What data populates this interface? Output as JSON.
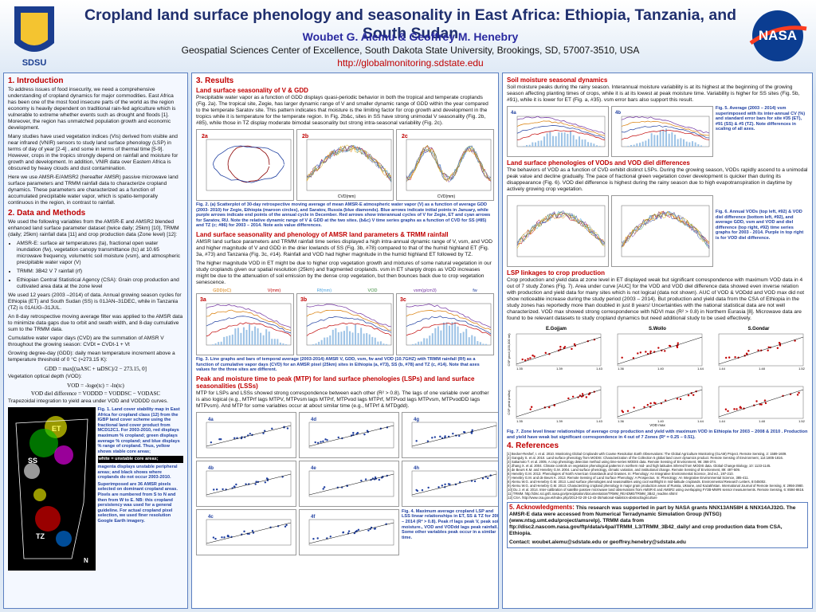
{
  "header": {
    "title": "Cropland land surface phenology and seasonality in East Africa: Ethiopia, Tanzania, and South Sudan",
    "authors": "Woubet G. Alemu & Geoffrey M. Henebry",
    "affiliation": "Geospatial Sciences Center of Excellence, South Dakota State University, Brookings, SD, 57007-3510, USA",
    "url": "http://globalmonitoring.sdstate.edu",
    "logo_left": "SDSU",
    "logo_right": "NASA"
  },
  "introduction": {
    "heading": "1. Introduction",
    "paragraphs": [
      "To address issues of food insecurity, we need a comprehensive understanding of cropland dynamics for major commodities. East Africa has been one of the most food insecure parts of the world as the region economy is heavily dependent on traditional rain-fed agriculture which is vulnerable to extreme whether events such as drought and floods [1]. Moreover, the region has unmatched population growth and economic development.",
      "Many studies have used vegetation indices (VIs) derived from visible and near infrared (VNIR) sensors to study land surface phenology (LSP) in terms of day of year [2-4] , and some in terms of thermal time [5-9]. However, crops in the tropics strongly depend on rainfall and moisture for growth and development. In addition, VNIR data over Eastern Africa is obscured by heavy clouds and dust contamination.",
      "Here we use AMSR-E/AMSR2 (hereafter AMSR) passive microwave land surface parameters and TRMM rainfall data to characterize cropland dynamics. These parameters are characterized as a function of accumulated precipitable water vapor, which is spatio-temporally continuous in the region, in contrast to rainfall."
    ]
  },
  "data_methods": {
    "heading": "2. Data and Methods",
    "intro": "We used the following variables from the AMSR-E and AMSR2 blended enhanced land surface parameter dataset (twice daily; 25km) [10], TRMM (daily; 25km) rainfall data [11] and crop production data (Zone level) [12]:",
    "bullets": [
      "AMSR-E: surface air temperatures (ta), fractional open water inundation (fw), vegetation canopy transmittance (tc) at 10.65 microwave frequency, volumetric soil moisture (vsm), and atmospheric precipitable water vapor (V)",
      "TRMM: 3B42 V 7 rainfall (rf)",
      "Ethiopian Central Statistical Agency (CSA): Grain crop production and cultivated area data at the zone level"
    ],
    "paragraphs": [
      "We used 12 years (2003 –2014) of data. Annual growing season cycles for Ethiopia (ET) and South Sudan (SS) is 01JAN–31DEC, while in Tanzania (TZ) is 01AUG–31JUL.",
      "An 8-day retrospective moving average filter was applied to the AMSR data to minimize data gaps due to orbit and swath width, and 8-day cumulative sum to the TRMM data.",
      "Cumulative water vapor days (CVD) are the summation of AMSR V throughout the growing season:  CVDt = CVDt-1 + Vt",
      "Growing degree-day (GDD): daily mean temperature increment above a temperature threshold of 0 °C (≈273.15 K):",
      "Vegetation optical depth (VOD):",
      "Trapezoidal integration to yield area under VOD and VODDD curves."
    ],
    "equations": [
      "GDD = max[(taASC + taDSC)/2 − 273.15, 0]",
      "VOD = -loge(tc) = -ln(tc)",
      "VOD diel difference = VODDD = VODDSC − VODASC"
    ]
  },
  "figure1": {
    "map_labels": [
      "ET",
      "SS",
      "TZ",
      "N"
    ],
    "caption": [
      "Fig. 1. Land cover stability map in East Africa for cropland class (12) from the IGBP land cover scheme using the fractional land cover product from MCD12C1. For 2003-2010, red displays maximum % cropland; green displays average % cropland; and blue displays % range of cropland. Thus, yellow shows stable core areas;",
      "white = unstable core areas;",
      "magenta displays unstable peripheral areas; and black shows where croplands do not occur 2003-2010.",
      "Superimposed are 36 AMSR pixels selected on dominant cropland areas. Pixels are numbered from S to N and then from W to E. NB: this cropland persistency was used for a general guideline. For actual cropland pixel selection, we used finer resolution Google Earth imagery."
    ]
  },
  "results": {
    "heading": "3. Results",
    "vgdd": {
      "heading": "Land surface seasonality of V & GDD",
      "paragraph": "Precipitable water vapor as a function of GDD displays quasi-periodic behavior in both the tropical and temperate croplands (Fig. 2a). The tropical site, Zegie, has larger dynamic range of V and smaller dynamic range of GDD within the year compared to the temperate Saratov site. This pattern indicates that moisture is the limiting factor for crop growth and development in the tropics while it is temperature for the temperate region. In Fig. 2b&c, sites in SS have strong unimodal V seasonality (Fig. 2b, #85), while those in TZ display moderate bimodal seasonality but strong intra-seasonal variability (Fig. 2c).",
      "figure": {
        "panels": [
          "2a",
          "2b",
          "2c"
        ],
        "xlabel": "CVD(mm)",
        "caption": "Fig. 2. (a) Scatterplot of 30-day retrospective moving average of mean AMSR-E atmospheric water vapor (V) as a function of average GDD (2003- 2010) for Zegie, Ethiopia (maroon circles), and Saratov, Russia (blue diamonds). Blue arrows indicate initial points in January, while purple arrows indicate end points of the annual cycle in December. Red arrows show interannual cycles of V for Zegie, ET and cyan arrows for Saratov, RU. Note the relative dynamic range of V & GDD at the two sites. (b&c) V time series graphs as a function of CVD for SS (#85) and TZ (c; #86) for 2003 – 2014. Note axis value differences."
      }
    },
    "amsr": {
      "heading": "Land surface seasonality and phenology of AMSR land parameters & TRMM rainfall",
      "paragraphs": [
        "AMSR land surface parameters and TRMM rainfall time series displayed a high intra-annual dynamic range of V, vsm, and VOD and higher magnitude of V and GDD in the drier lowlands of SS (Fig. 3b, #78) compared to that of the humid highland ET (Fig. 3a, #73) and Tanzania (Fig. 3c, #14). Rainfall and VOD had higher magnitude in the humid highland ET followed by TZ.",
        "The higher magnitude VOD in ET might be due to higher crop vegetation growth and mixtures of some natural vegetation in our study croplands given our spatial resolution (25km) and fragmented croplands. vsm in ET sharply drops as VOD increases might be due to the attenuation of soil emission by the dense crop vegetation, but then bounces back due to crop vegetation senescence."
      ],
      "figure": {
        "legend": [
          "GDD(oC)",
          "V(mm)",
          "Rf(mm)",
          "VOD",
          "vsm(g/cm3)",
          "fw"
        ],
        "panels": [
          "3a",
          "3b",
          "3c"
        ],
        "caption": "Fig. 3. Line graphs and bars of temporal average (2003-2014) AMSR V, GDD, vsm, fw and VOD (10.7GHZ) with TRMM rainfall (Rf) as a function of cumulative vapor days (CVD) for an AMSR pixel (25km) sites in Ethiopia (a, #73), SS (b, #78) and TZ (c, #14). Note that axes values for the three sites are different."
      }
    },
    "mtp": {
      "heading": "Peak and moisture time to peak (MTP) for land surface phenologies (LSPs) and land surface seasonalities (LSSs)",
      "paragraph": "MTP for LSPs and LSSs showed strong correspondence between each other (R² > 0.8). The lags of one variable over another is also logical (e.g., MTPrf lags MTPV, MTPvsm lags MTPrf, MTPvod lags MTPrf, MTPvod lags MTPvsm, MTPvodDD lags MTPvsm). And MTP for some variables occur at about similar time (e.g., MTPrf & MTDgdd).",
      "figure": {
        "panels": [
          "4a",
          "4d",
          "4g",
          "4b",
          "4e",
          "4h",
          "4c",
          "4f"
        ],
        "caption": "Fig. 4. Maximum average cropland LSP and LSS linear relationships in ET, SS & TZ for 2003 – 2014 (R² > 0.8). Peak rf lags peak V, peak soil moisture., VOD and VODdd lags peak rainfall. Some other variables peak occur in a similar time."
      }
    }
  },
  "soil_moisture": {
    "heading": "Soil moisture seasonal dynamics",
    "paragraph": "Soil moisture peaks during the rainy season. Interannual moisture variability is at its highest at the beginning of the growing season affecting planting times of crops, while it is at its lowest at peak moisture time. Variability is higher for SS sites (Fig. 5b, #91), while it is lower for ET (Fig. a, #35). vsm error bars also support this result.",
    "figure": {
      "panels": [
        "4a",
        "4b"
      ],
      "caption": "Fig. 5. Average (2003 – 2014) vsm superimposed with its inter-annual CV (%) and standard error bars for site #35 (ET), #91 (SS) & #5 (TZ). Note differences in scaling of all axes."
    }
  },
  "vod": {
    "heading": "Land surface phenologies of VODs and VOD diel differences",
    "paragraph": "The behaviors of VOD as a function of CVD exhibit distinct LSPs. During the growing season, VODs rapidly ascend to a unimodal peak value and decline gradually. The pace of fractional green vegetation cover development is quicker than during its disappearance (Fig. 6). VOD diel difference is highest during the rainy season due to high evapotranspiration in daytime by actively growing crop vegetation.",
    "figure": {
      "caption": "Fig. 6. Annual VODs (top left, #92) & VOD diel difference (bottom left, #92), and average GDD, vsm and VOD and diel difference (top right, #92) time series graphs for 2003 - 2014. Purple in top right is for VOD diel difference."
    }
  },
  "lsp": {
    "heading": "LSP linkages to crop production",
    "paragraph": "Crop production and yield data at zone level in ET displayed weak but significant correspondence with maximum VOD data in 4 out of 7 study Zones (Fig. 7). Area under curve [AUC] for the VOD and VOD diel difference data showed even inverse relation with production and yield data for many sites which is not logical (data not shown). AUC of VOD & VODdd and VOD max did not show noticeable increase during the study period (2003 – 2014). But production and yield data from the CSA of Ethiopia in the study zones has reportedly more than doubled in just 8 years! Uncertainties with the national statistical data are not well characterized.  VOD max showed strong correspondence with NDVI max (R² > 0.8) in Northern Eurasia [8]. Microwave data are found to be relevant datasets to study cropland dynamics but need additional study to be used effectively.",
    "figure": {
      "titles": [
        "E.Gojjam",
        "S.Wollo",
        "S.Gondar"
      ],
      "ylabels": [
        "CSP prod (100,000 mt)",
        "CSP yield (mt/ha)"
      ],
      "xlabel": "VOD max",
      "xticks": [
        [
          "1.35",
          "1.39",
          "1.43"
        ],
        [
          "1.36",
          "1.40",
          "1.44"
        ],
        [
          "1.44",
          "1.48",
          "1.52"
        ]
      ],
      "caption": "Fig. 7. Zone level linear relationships of average crop production and yield with maximum VOD in Ethiopia for 2003 – 2008 & 2010 . Production and yield  have weak but significant correspondence in 4 out of 7 Zones (R² = 0.25 – 0.51)."
    }
  },
  "references": {
    "heading": "4. References",
    "items": [
      "[1]  Becker-Reshef, I. et al. 2010. Monitoring Global Croplands with Coarse Resolution Earth Observations: The Global Agriculture Monitoring (GLAM) Project. Remote Sensing, 2: 1589-1609.",
      "[2]  Ganguly S. et al. 2010. Land surface phenology from MODIS: Characterization of the Collection 5 global land cover dynamics product. Remote Sensing of Environment, 114:1805-1816.",
      "[3]  Sakamoto T. et al. 2005. A crop phenology detection method using time-series MODIS data. Remote Sensing of Environment, 96: 366-374.",
      "[4]  Zhang X. et al. 2004. Climate controls on vegetation phenological patterns in northern mid- and high latitudes inferred from MODIS data. Global Change Biology, 10: 1133-1145.",
      "[5]  de Beurs K.M. and Henebry G.M. 2004. Land surface phenology, climatic variation, and institutional change. Remote Sensing of Environment, 89: 497-509.",
      "[6]  Henebry G.M. 2013. Phenologies of North American Grasslands and Grasses. In: Phenology: An Integrative Environmental Science, 2nd ed., 197-210.",
      "[7]  Henebry G.M. and de Beurs K. 2013. Remote Sensing of Land Surface Phenology: A Prospectus. In: Phenology: An Integrative Environmental Science, 385-411.",
      "[8]  Alemu W.G. and Henebry G.M. 2013. Land surface phenologies and seasonalities using cool earthlight in mid-latitude croplands. Environmental Research Letters, 8:045002.",
      "[9]  Alemu W.G. and Henebry G.M. 2013. Characterizing cropland phenology in major grain production areas of Russia, Ukraine, and Kazakhstan. International Journal of Remote Sensing, 6: 2956-2980.",
      "[10] Du J. et al. 2014. Inter-calibration of satellite passive microwave land observations from AMSR-E and AMSR2 using overlapping FY3B-MWRI sensor measurements. Remote Sensing, 6: 8594-8616.",
      "[11] TRMM. http://disc.sci.gsfc.nasa.gov/precipitation/documentation/TRMM_README/TRMM_3B42_readme.shtml",
      "[12] CSA. http://www.csa.gov.et/index.php/2013-02-20-13-43-35/national-statistics-abstract/agriculture"
    ]
  },
  "acknowledgments": {
    "heading": "5. Acknowledgments:",
    "text": "This research was supported in part by NASA grants NNX13AN58H & NNX14AJ32G. The AMSR-E data were accessed from Numerical Terradynamic Simulation Group (NTSG) (www.ntsg.umt.edu/project/amsrelp). TRMM data from ftp://disc2.nascom.nasa.gov/ftp/data/s4pa//TRMM_L3/TRMM_3B42_daily/ and crop production data from CSA, Ethiopia.",
    "contact": "Contact: woubet.alemu@sdstate.edu  or  geoffrey.henebry@sdstate.edu"
  }
}
